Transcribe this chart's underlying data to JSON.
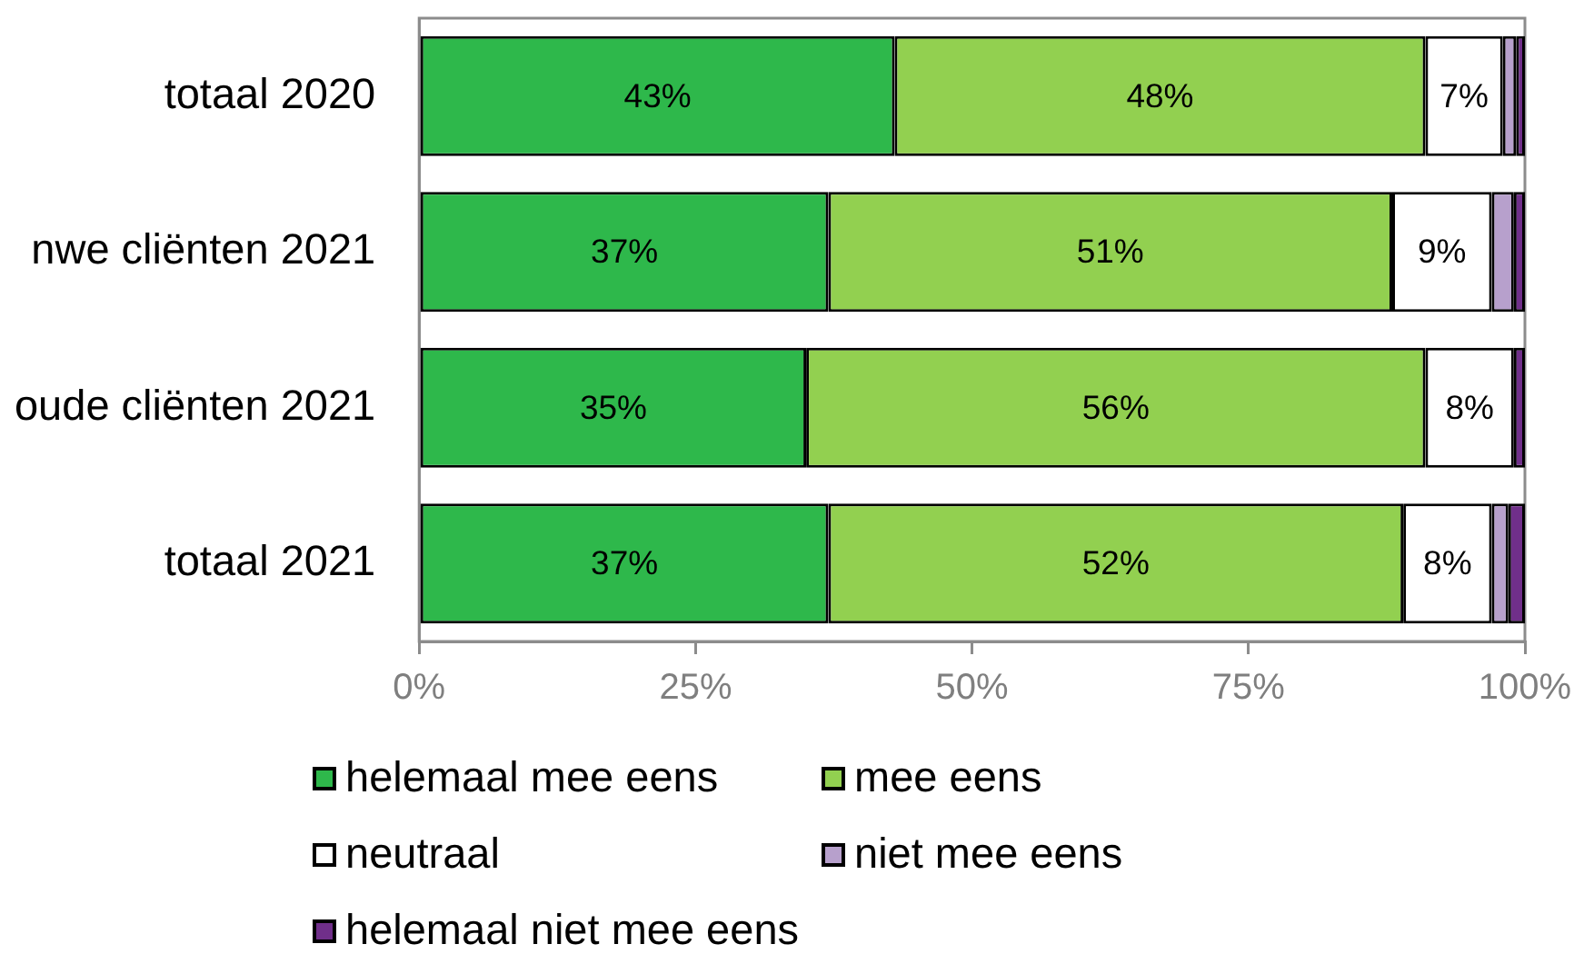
{
  "chart_data": {
    "type": "bar",
    "orientation": "horizontal",
    "stacked": true,
    "categories": [
      "totaal 2020",
      "nwe cliënten 2021",
      "oude cliënten 2021",
      "totaal 2021"
    ],
    "series": [
      {
        "name": "helemaal mee eens",
        "color": "#2eb84b",
        "values": [
          43,
          37,
          35,
          37
        ],
        "value_labels": [
          "43%",
          "37%",
          "35%",
          "37%"
        ]
      },
      {
        "name": "mee eens",
        "color": "#92d050",
        "values": [
          48,
          51,
          56,
          52
        ],
        "value_labels": [
          "48%",
          "51%",
          "56%",
          "52%"
        ]
      },
      {
        "name": "neutraal",
        "color": "#ffffff",
        "values": [
          7,
          9,
          8,
          8
        ],
        "value_labels": [
          "7%",
          "9%",
          "8%",
          "8%"
        ]
      },
      {
        "name": "niet mee eens",
        "color": "#b7a0cc",
        "values": [
          1.2,
          2,
          0,
          1.5
        ]
      },
      {
        "name": "helemaal niet mee eens",
        "color": "#702f8a",
        "values": [
          0.8,
          1,
          1,
          1.5
        ]
      }
    ],
    "xlim": [
      0,
      100
    ],
    "xticks": [
      {
        "value": 0,
        "label": "0%"
      },
      {
        "value": 25,
        "label": "25%"
      },
      {
        "value": 50,
        "label": "50%"
      },
      {
        "value": 75,
        "label": "75%"
      },
      {
        "value": 100,
        "label": "100%"
      }
    ],
    "grid": false,
    "legend": "bottom"
  }
}
